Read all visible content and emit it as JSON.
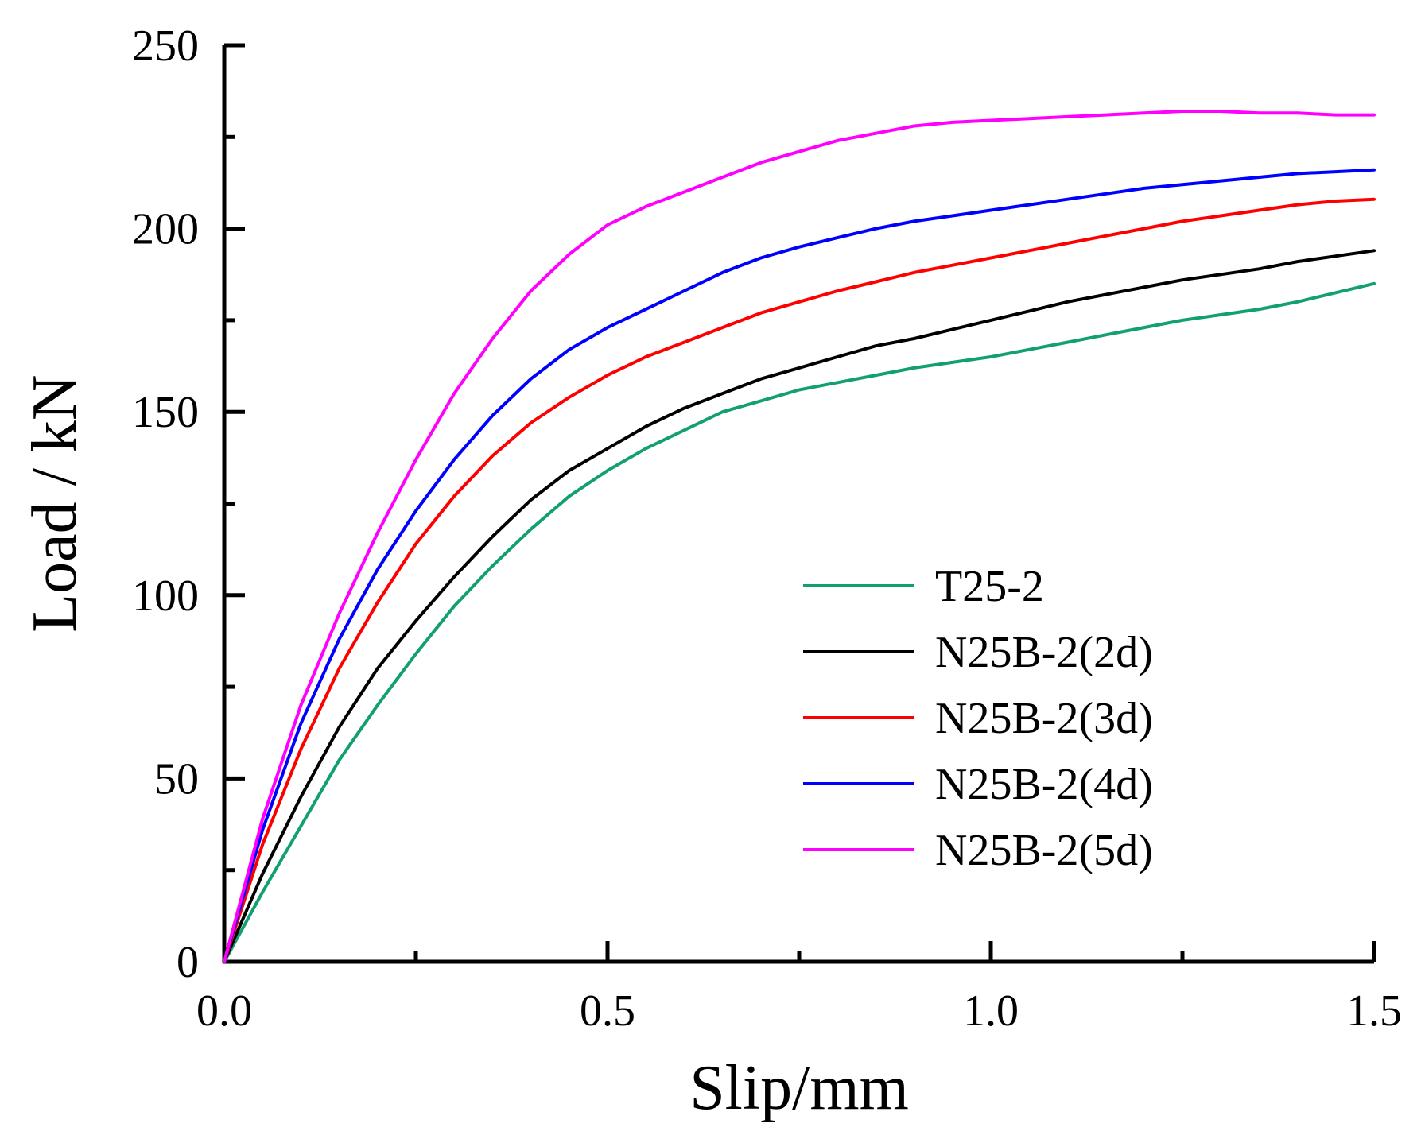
{
  "chart_data": {
    "type": "line",
    "title": "",
    "xlabel": "Slip/mm",
    "ylabel": "Load / kN",
    "xlim": [
      0,
      1.5
    ],
    "ylim": [
      0,
      250
    ],
    "xticks": [
      0.0,
      0.5,
      1.0,
      1.5
    ],
    "xtick_labels": [
      "0.0",
      "0.5",
      "1.0",
      "1.5"
    ],
    "yticks": [
      0,
      50,
      100,
      150,
      200,
      250
    ],
    "ytick_labels": [
      "0",
      "50",
      "100",
      "150",
      "200",
      "250"
    ],
    "grid": false,
    "legend_position": "right-center",
    "series": [
      {
        "name": "T25-2",
        "color": "#12a070",
        "x": [
          0,
          0.05,
          0.1,
          0.15,
          0.2,
          0.25,
          0.3,
          0.35,
          0.4,
          0.45,
          0.5,
          0.55,
          0.6,
          0.65,
          0.7,
          0.75,
          0.8,
          0.85,
          0.9,
          0.95,
          1.0,
          1.05,
          1.1,
          1.15,
          1.2,
          1.25,
          1.3,
          1.35,
          1.4,
          1.45,
          1.5
        ],
        "y": [
          0,
          19,
          37,
          55,
          70,
          84,
          97,
          108,
          118,
          127,
          134,
          140,
          145,
          150,
          153,
          156,
          158,
          160,
          162,
          163.5,
          165,
          167,
          169,
          171,
          173,
          175,
          176.5,
          178,
          180,
          182.5,
          185
        ]
      },
      {
        "name": "N25B-2(2d)",
        "color": "#000000",
        "x": [
          0,
          0.05,
          0.1,
          0.15,
          0.2,
          0.25,
          0.3,
          0.35,
          0.4,
          0.45,
          0.5,
          0.55,
          0.6,
          0.65,
          0.7,
          0.75,
          0.8,
          0.85,
          0.9,
          0.95,
          1.0,
          1.05,
          1.1,
          1.15,
          1.2,
          1.25,
          1.3,
          1.35,
          1.4,
          1.45,
          1.5
        ],
        "y": [
          0,
          24,
          45,
          64,
          80,
          93,
          105,
          116,
          126,
          134,
          140,
          146,
          151,
          155,
          159,
          162,
          165,
          168,
          170,
          172.5,
          175,
          177.5,
          180,
          182,
          184,
          186,
          187.5,
          189,
          191,
          192.5,
          194
        ]
      },
      {
        "name": "N25B-2(3d)",
        "color": "#ff0000",
        "x": [
          0,
          0.05,
          0.1,
          0.15,
          0.2,
          0.25,
          0.3,
          0.35,
          0.4,
          0.45,
          0.5,
          0.55,
          0.6,
          0.65,
          0.7,
          0.75,
          0.8,
          0.85,
          0.9,
          0.95,
          1.0,
          1.05,
          1.1,
          1.15,
          1.2,
          1.25,
          1.3,
          1.35,
          1.4,
          1.45,
          1.5
        ],
        "y": [
          0,
          32,
          58,
          80,
          98,
          114,
          127,
          138,
          147,
          154,
          160,
          165,
          169,
          173,
          177,
          180,
          183,
          185.5,
          188,
          190,
          192,
          194,
          196,
          198,
          200,
          202,
          203.5,
          205,
          206.5,
          207.5,
          208
        ]
      },
      {
        "name": "N25B-2(4d)",
        "color": "#0000ff",
        "x": [
          0,
          0.05,
          0.1,
          0.15,
          0.2,
          0.25,
          0.3,
          0.35,
          0.4,
          0.45,
          0.5,
          0.55,
          0.6,
          0.65,
          0.7,
          0.75,
          0.8,
          0.85,
          0.9,
          0.95,
          1.0,
          1.05,
          1.1,
          1.15,
          1.2,
          1.25,
          1.3,
          1.35,
          1.4,
          1.45,
          1.5
        ],
        "y": [
          0,
          36,
          65,
          88,
          107,
          123,
          137,
          149,
          159,
          167,
          173,
          178,
          183,
          188,
          192,
          195,
          197.5,
          200,
          202,
          203.5,
          205,
          206.5,
          208,
          209.5,
          211,
          212,
          213,
          214,
          215,
          215.5,
          216
        ]
      },
      {
        "name": "N25B-2(5d)",
        "color": "#ff00ff",
        "x": [
          0,
          0.05,
          0.1,
          0.15,
          0.2,
          0.25,
          0.3,
          0.35,
          0.4,
          0.45,
          0.5,
          0.55,
          0.6,
          0.65,
          0.7,
          0.75,
          0.8,
          0.85,
          0.9,
          0.95,
          1.0,
          1.05,
          1.1,
          1.15,
          1.2,
          1.25,
          1.3,
          1.35,
          1.4,
          1.45,
          1.5
        ],
        "y": [
          0,
          39,
          70,
          95,
          117,
          137,
          155,
          170,
          183,
          193,
          201,
          206,
          210,
          214,
          218,
          221,
          224,
          226,
          228,
          229,
          229.5,
          230,
          230.5,
          231,
          231.5,
          232,
          232,
          231.5,
          231.5,
          231,
          231
        ]
      }
    ]
  }
}
